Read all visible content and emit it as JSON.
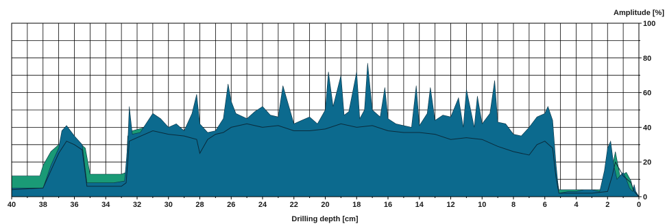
{
  "chart_data": {
    "type": "area",
    "xlabel": "Drilling depth [cm]",
    "ylabel": "Amplitude [%]",
    "xlim": [
      40,
      0
    ],
    "ylim": [
      0,
      100
    ],
    "x_reversed": true,
    "y_axis_side": "right",
    "grid": true,
    "x_ticks": [
      40,
      38,
      36,
      34,
      32,
      30,
      28,
      26,
      24,
      22,
      20,
      18,
      16,
      14,
      12,
      10,
      8,
      6,
      4,
      2,
      0
    ],
    "y_ticks": [
      0,
      20,
      40,
      60,
      80,
      100
    ],
    "colors": {
      "front_series": "#0c6a8e",
      "back_series": "#1a9a76",
      "line": "#0a2a3a",
      "grid": "#000000"
    },
    "series": [
      {
        "role": "back",
        "color": "#1a9a76",
        "x": [
          40,
          39.0,
          38.2,
          38.0,
          37.5,
          37.0,
          36.7,
          36.3,
          35.8,
          35.3,
          35.0,
          33.0,
          32.7,
          32.6,
          32.3,
          31.5,
          30.5,
          29.5,
          28.5,
          28.2,
          27.5,
          26.5,
          25.5,
          24.5,
          23.5,
          22.5,
          21.5,
          20.5,
          19.5,
          18.5,
          17.5,
          16.5,
          15.5,
          14.5,
          13.5,
          12.5,
          11.5,
          10.5,
          9.5,
          8.5,
          7.5,
          6.5,
          6.0,
          5.5,
          5.3,
          5.1,
          4.0,
          3.0,
          2.2,
          1.9,
          1.5,
          1.2,
          0.8,
          0.5,
          0.35,
          0.2,
          0
        ],
        "y": [
          12,
          12,
          12,
          18,
          26,
          30,
          32,
          33,
          32,
          28,
          13,
          13,
          14,
          35,
          38,
          40,
          39,
          37,
          36,
          30,
          35,
          38,
          39,
          41,
          40,
          38,
          38,
          39,
          40,
          40,
          41,
          40,
          39,
          39,
          38,
          36,
          37,
          37,
          35,
          30,
          28,
          33,
          36,
          33,
          15,
          4,
          4,
          4,
          4,
          8,
          26,
          12,
          14,
          9,
          3,
          3,
          0
        ]
      },
      {
        "role": "front",
        "color": "#0c6a8e",
        "x": [
          40,
          39.0,
          38.0,
          37.8,
          37.5,
          37.0,
          36.8,
          36.5,
          36.0,
          35.5,
          35.2,
          34.5,
          33.5,
          32.8,
          32.6,
          32.5,
          32.3,
          31.8,
          31.0,
          30.5,
          30.0,
          29.5,
          29.0,
          28.5,
          28.2,
          28.0,
          27.5,
          27.0,
          26.5,
          26.2,
          26.0,
          25.7,
          25.0,
          24.5,
          24.0,
          23.5,
          23.0,
          22.7,
          22.0,
          21.5,
          21.0,
          20.5,
          20.0,
          19.8,
          19.5,
          19.0,
          18.8,
          18.5,
          18.0,
          17.8,
          17.5,
          17.3,
          17.0,
          16.5,
          16.2,
          16.0,
          15.5,
          15.0,
          14.5,
          14.2,
          14.0,
          13.5,
          13.3,
          13.0,
          12.5,
          12.0,
          11.5,
          11.2,
          11.0,
          10.5,
          10.3,
          10.0,
          9.5,
          9.2,
          9.0,
          8.5,
          8.0,
          7.5,
          7.0,
          6.5,
          6.0,
          5.8,
          5.5,
          5.3,
          5.1,
          4.5,
          4.0,
          3.5,
          3.0,
          2.5,
          2.2,
          2.0,
          1.8,
          1.6,
          1.4,
          1.2,
          1.0,
          0.8,
          0.6,
          0.4,
          0.3,
          0.2,
          0
        ],
        "y": [
          5,
          5,
          5,
          10,
          18,
          28,
          38,
          41,
          35,
          30,
          8,
          8,
          8,
          9,
          30,
          52,
          36,
          37,
          48,
          45,
          40,
          42,
          38,
          48,
          59,
          42,
          37,
          38,
          45,
          65,
          55,
          48,
          45,
          49,
          52,
          47,
          46,
          64,
          42,
          44,
          46,
          42,
          50,
          72,
          52,
          70,
          47,
          49,
          72,
          45,
          50,
          77,
          50,
          46,
          63,
          45,
          42,
          41,
          40,
          64,
          41,
          48,
          63,
          44,
          47,
          46,
          57,
          40,
          62,
          40,
          58,
          42,
          48,
          67,
          43,
          42,
          36,
          35,
          40,
          46,
          48,
          52,
          44,
          20,
          2,
          3,
          3,
          4,
          4,
          3,
          15,
          28,
          32,
          18,
          10,
          12,
          14,
          10,
          5,
          3,
          7,
          3,
          0
        ]
      }
    ],
    "front_outline": {
      "x": [
        40,
        38.0,
        37.5,
        37.0,
        36.5,
        36.0,
        35.5,
        35.2,
        33.0,
        32.7,
        32.5,
        32.0,
        31.0,
        30.0,
        29.0,
        28.2,
        28.0,
        27.5,
        27.0,
        26.5,
        26.0,
        25.0,
        24.0,
        23.0,
        22.0,
        21.0,
        20.0,
        19.0,
        18.0,
        17.0,
        16.0,
        15.0,
        14.0,
        13.0,
        12.0,
        11.0,
        10.0,
        9.0,
        8.0,
        7.0,
        6.5,
        6.0,
        5.5,
        5.3,
        5.1,
        4.0,
        3.0,
        2.0,
        1.7,
        1.5,
        1.0,
        0.5,
        0.3,
        0
      ],
      "y": [
        4,
        5,
        15,
        25,
        32,
        30,
        27,
        6,
        6,
        8,
        32,
        34,
        38,
        36,
        35,
        33,
        25,
        33,
        36,
        37,
        40,
        42,
        40,
        41,
        38,
        38,
        39,
        42,
        40,
        41,
        38,
        37,
        37,
        36,
        33,
        34,
        33,
        29,
        26,
        24,
        30,
        32,
        28,
        12,
        2,
        2,
        2,
        3,
        12,
        20,
        12,
        8,
        3,
        0
      ]
    }
  },
  "labels": {
    "xlabel": "Drilling depth [cm]",
    "ylabel": "Amplitude [%]",
    "x_ticks": [
      "40",
      "38",
      "36",
      "34",
      "32",
      "30",
      "28",
      "26",
      "24",
      "22",
      "20",
      "18",
      "16",
      "14",
      "12",
      "10",
      "8",
      "6",
      "4",
      "2",
      "0"
    ],
    "y_ticks": [
      "0",
      "20",
      "40",
      "60",
      "80",
      "100"
    ]
  }
}
